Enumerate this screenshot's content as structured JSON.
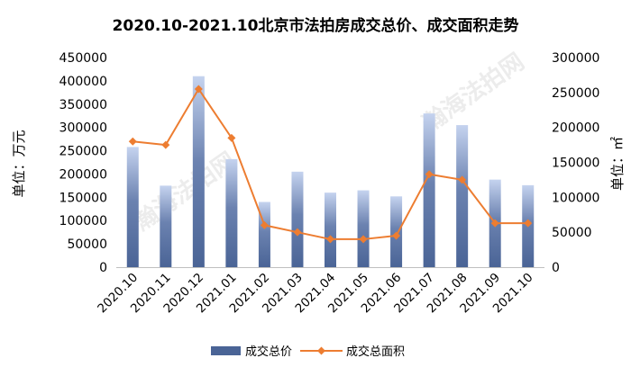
{
  "chart_data": {
    "type": "bar",
    "title": "2020.10-2021.10北京市法拍房成交总价、成交面积走势",
    "categories": [
      "2020.10",
      "2020.11",
      "2020.12",
      "2021.01",
      "2021.02",
      "2021.03",
      "2021.04",
      "2021.05",
      "2021.06",
      "2021.07",
      "2021.08",
      "2021.09",
      "2021.10"
    ],
    "series": [
      {
        "name": "成交总价",
        "type": "bar",
        "axis": "left",
        "color": "#4a6496",
        "values": [
          258000,
          175000,
          410000,
          232000,
          140000,
          205000,
          160000,
          165000,
          152000,
          330000,
          305000,
          188000,
          176000
        ]
      },
      {
        "name": "成交总面积",
        "type": "line",
        "axis": "right",
        "color": "#ed7d31",
        "values": [
          180000,
          175000,
          255000,
          185000,
          60000,
          50000,
          40000,
          40000,
          45000,
          133000,
          125000,
          63000,
          63000
        ]
      }
    ],
    "ylabel": "单位：万元",
    "y2label": "单位：㎡",
    "ylim": [
      0,
      450000
    ],
    "y2lim": [
      0,
      300000
    ],
    "yticks": [
      "0",
      "50000",
      "100000",
      "150000",
      "200000",
      "250000",
      "300000",
      "350000",
      "400000",
      "450000"
    ],
    "y2ticks": [
      "0",
      "50000",
      "100000",
      "150000",
      "200000",
      "250000",
      "300000"
    ],
    "grid": false,
    "legend_position": "bottom"
  },
  "watermarks": [
    "瀚海法拍网",
    "www.fapaiw.com"
  ]
}
